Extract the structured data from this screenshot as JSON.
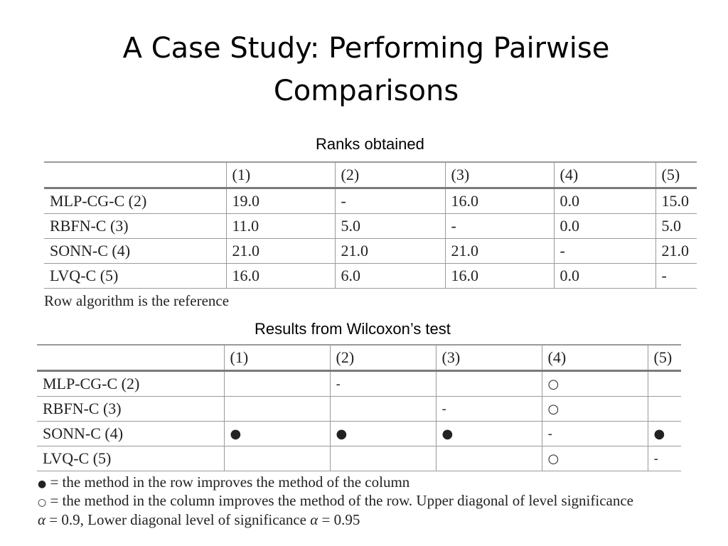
{
  "title": {
    "line1": "A Case Study: Performing Pairwise",
    "line2": "Comparisons"
  },
  "ranks_section": {
    "caption": "Ranks obtained",
    "columns": [
      "",
      "(1)",
      "(2)",
      "(3)",
      "(4)",
      "(5)"
    ],
    "rows": [
      [
        "MLP-CG-C (2)",
        "19.0",
        "-",
        "16.0",
        "0.0",
        "15.0"
      ],
      [
        "RBFN-C (3)",
        "11.0",
        "5.0",
        "-",
        "0.0",
        "5.0"
      ],
      [
        "SONN-C (4)",
        "21.0",
        "21.0",
        "21.0",
        "-",
        "21.0"
      ],
      [
        "LVQ-C (5)",
        "16.0",
        "6.0",
        "16.0",
        "0.0",
        "-"
      ]
    ],
    "note": "Row algorithm is the reference"
  },
  "wilcoxon_section": {
    "caption": "Results from Wilcoxon’s test",
    "columns": [
      "",
      "(1)",
      "(2)",
      "(3)",
      "(4)",
      "(5)"
    ],
    "rows": [
      [
        "MLP-CG-C (2)",
        "",
        "-",
        "",
        "○",
        ""
      ],
      [
        "RBFN-C (3)",
        "",
        "",
        "-",
        "○",
        ""
      ],
      [
        "SONN-C (4)",
        "●",
        "●",
        "●",
        "-",
        "●"
      ],
      [
        "LVQ-C (5)",
        "",
        "",
        "",
        "○",
        "-"
      ]
    ],
    "legend": {
      "filled_symbol": "●",
      "filled_text": " = the method in the row improves the method of the column",
      "hollow_symbol": "○",
      "hollow_text": " = the method in the column improves the method of the row. Upper diagonal of level significance",
      "alpha_symbol": "α",
      "alpha_text1": " = 0.9, Lower diagonal level of significance ",
      "alpha_symbol2": "α",
      "alpha_text2": " = 0.95"
    }
  }
}
